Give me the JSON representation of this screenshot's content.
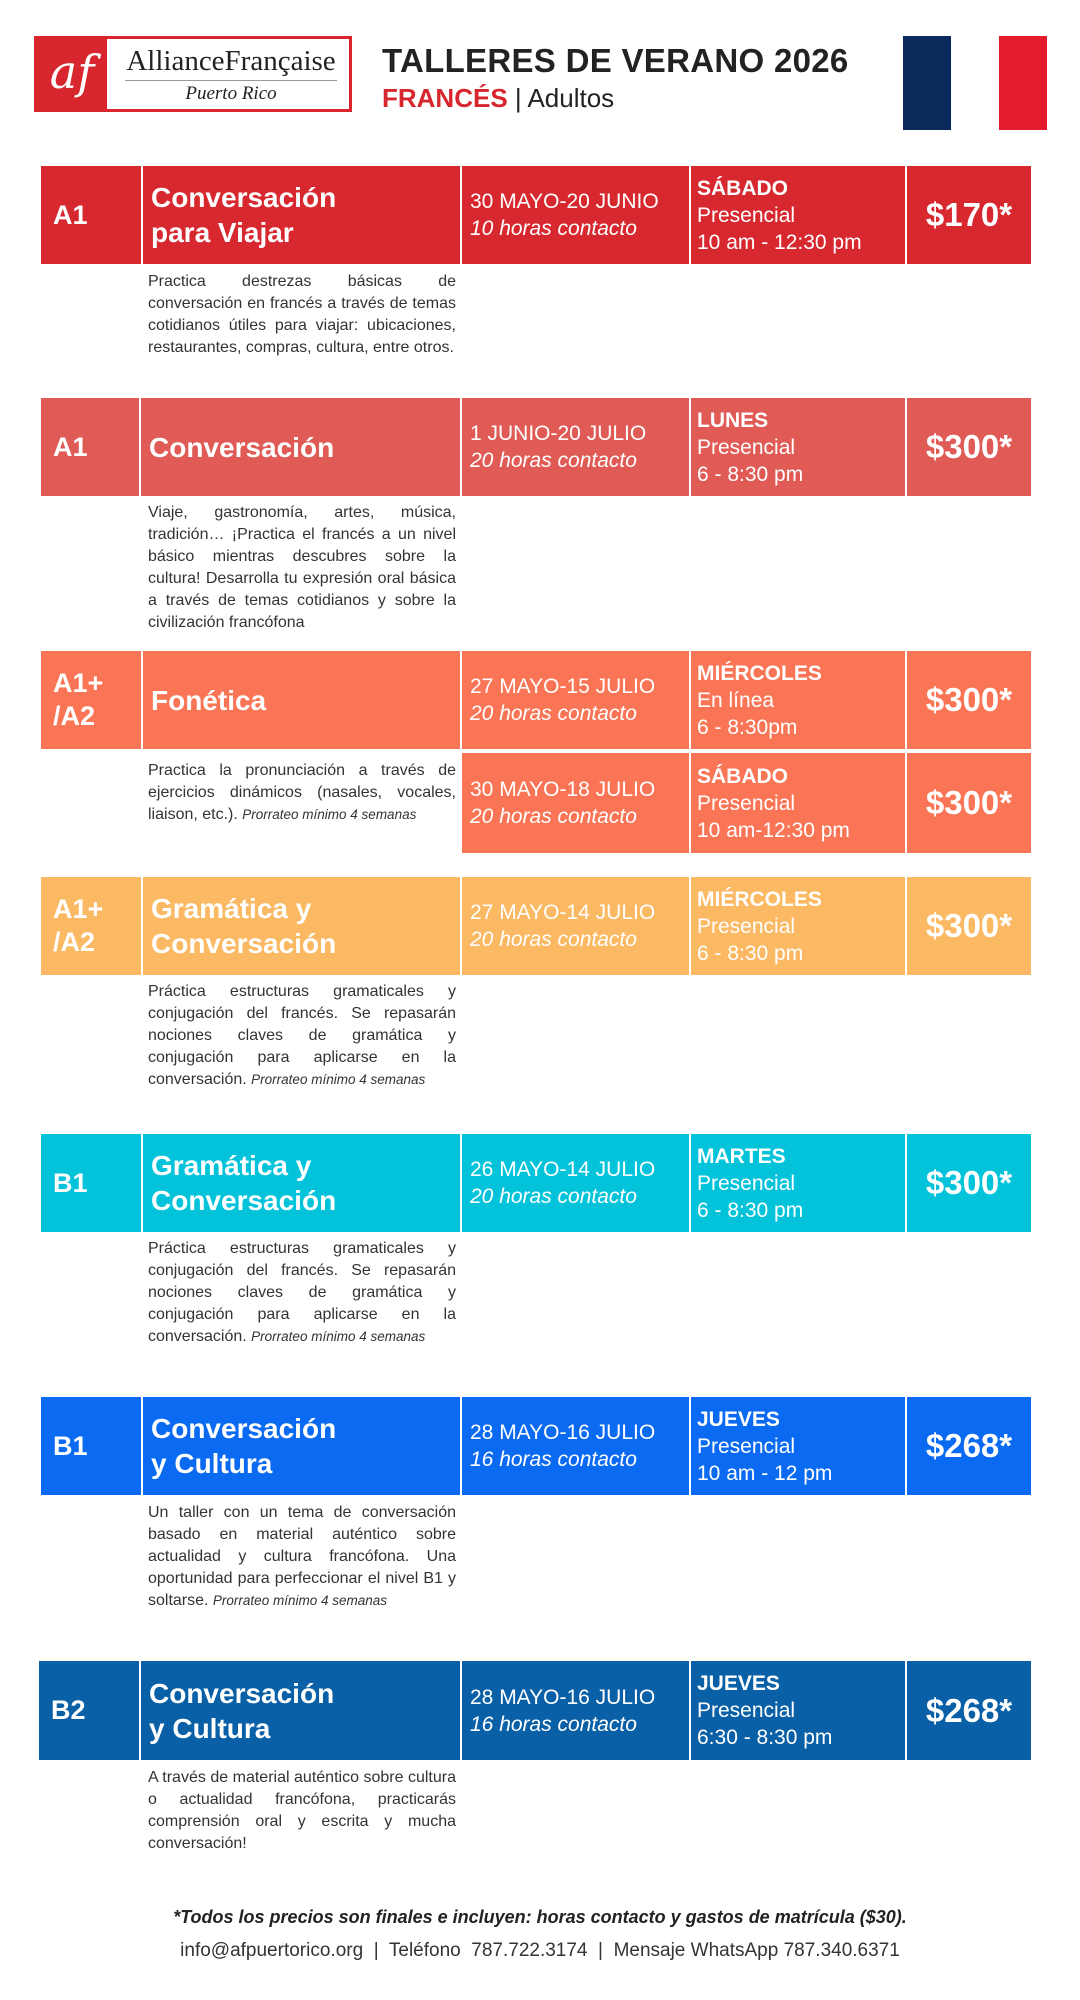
{
  "header": {
    "logo_initials": "af",
    "logo_name": "AllianceFrançaise",
    "logo_city": "Puerto Rico",
    "title": "TALLERES DE VERANO 2026",
    "subtitle_lang": "FRANCÉS",
    "subtitle_sep": " | ",
    "subtitle_audience": "Adultos"
  },
  "colors": {
    "brand_red": "#d7262e",
    "flag_blue": "#0b2a5c",
    "flag_white": "#ffffff",
    "flag_red": "#e31b2c"
  },
  "courses": [
    {
      "level": "A1",
      "title_l1": "Conversación",
      "title_l2": "para Viajar",
      "color": "#d8282f",
      "sessions": [
        {
          "dates": "30 MAYO-20 JUNIO",
          "hours": "10 horas contacto",
          "day": "SÁBADO",
          "mode": "Presencial",
          "time": "10 am - 12:30 pm",
          "price": "$170*"
        }
      ],
      "description": "Practica destrezas básicas de conversación en francés a través de temas cotidianos útiles para viajar: ubicaciones, restaurantes, compras, cultura, entre otros.",
      "note": ""
    },
    {
      "level": "A1",
      "title_l1": "Conversación",
      "title_l2": "",
      "color": "#e05a56",
      "sessions": [
        {
          "dates": "1 JUNIO-20 JULIO",
          "hours": "20 horas contacto",
          "day": "LUNES",
          "mode": "Presencial",
          "time": "6 - 8:30 pm",
          "price": "$300*"
        }
      ],
      "description": "Viaje, gastronomía, artes, música, tradición… ¡Practica el francés a un nivel básico mientras descubres sobre la cultura! Desarrolla tu expresión oral básica a través de temas cotidianos y sobre la civilización francófona",
      "note": ""
    },
    {
      "level": "A1+ /A2",
      "title_l1": "Fonética",
      "title_l2": "",
      "color": "#fa7556",
      "sessions": [
        {
          "dates": "27 MAYO-15 JULIO",
          "hours": "20 horas contacto",
          "day": "MIÉRCOLES",
          "mode": "En línea",
          "time": "6 - 8:30pm",
          "price": "$300*"
        },
        {
          "dates": "30 MAYO-18 JULIO",
          "hours": "20 horas contacto",
          "day": "SÁBADO",
          "mode": "Presencial",
          "time": "10 am-12:30 pm",
          "price": "$300*"
        }
      ],
      "description": "Practica la pronunciación a través de ejercicios dinámicos (nasales, vocales, liaison, etc.).",
      "note": "Prorrateo mínimo 4 semanas"
    },
    {
      "level": "A1+ /A2",
      "title_l1": "Gramática y",
      "title_l2": "Conversación",
      "color": "#fbb963",
      "sessions": [
        {
          "dates": "27 MAYO-14 JULIO",
          "hours": "20 horas contacto",
          "day": "MIÉRCOLES",
          "mode": "Presencial",
          "time": "6 - 8:30 pm",
          "price": "$300*"
        }
      ],
      "description": "Práctica estructuras gramaticales y conjugación del francés. Se repasarán nociones claves de gramática y conjugación para aplicarse en la conversación.",
      "note": "Prorrateo mínimo 4 semanas"
    },
    {
      "level": "B1",
      "title_l1": "Gramática y",
      "title_l2": "Conversación",
      "color": "#03c3da",
      "sessions": [
        {
          "dates": "26 MAYO-14 JULIO",
          "hours": "20 horas contacto",
          "day": "MARTES",
          "mode": "Presencial",
          "time": "6 - 8:30 pm",
          "price": "$300*"
        }
      ],
      "description": "Práctica estructuras gramaticales y conjugación del francés. Se repasarán nociones claves de gramática y conjugación para aplicarse en la conversación.",
      "note": "Prorrateo mínimo 4 semanas"
    },
    {
      "level": "B1",
      "title_l1": "Conversación",
      "title_l2": "y Cultura",
      "color": "#0a6af2",
      "sessions": [
        {
          "dates": "28 MAYO-16 JULIO",
          "hours": "16 horas contacto",
          "day": "JUEVES",
          "mode": "Presencial",
          "time": "10 am - 12 pm",
          "price": "$268*"
        }
      ],
      "description": "Un taller con un tema de conversación basado en material auténtico sobre actualidad y cultura francófona. Una oportunidad para perfeccionar el nivel B1 y soltarse.",
      "note": "Prorrateo mínimo 4 semanas"
    },
    {
      "level": "B2",
      "title_l1": "Conversación",
      "title_l2": "y Cultura",
      "color": "#0960a6",
      "sessions": [
        {
          "dates": "28 MAYO-16 JULIO",
          "hours": "16 horas contacto",
          "day": "JUEVES",
          "mode": "Presencial",
          "time": "6:30 - 8:30 pm",
          "price": "$268*"
        }
      ],
      "description": "A través de material auténtico sobre cultura o actualidad francófona, practicarás comprensión oral y escrita y mucha conversación!",
      "note": ""
    }
  ],
  "footer": {
    "footnote": "*Todos los precios son finales e incluyen: horas contacto y gastos de matrícula ($30).",
    "email": "info@afpuertorico.org",
    "sep": "  |  ",
    "phone": "Teléfono  787.722.3174",
    "whatsapp": "Mensaje WhatsApp 787.340.6371"
  }
}
